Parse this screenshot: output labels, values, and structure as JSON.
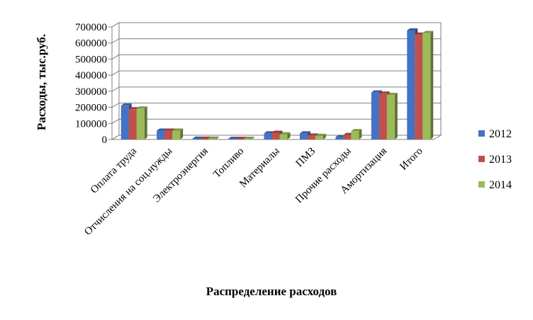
{
  "chart_data": {
    "type": "bar",
    "title": "",
    "xlabel": "Распределение расходов",
    "ylabel": "Расходы, тыс.руб.",
    "ylim": [
      0,
      700000
    ],
    "yticks": [
      "0",
      "100000",
      "200000",
      "300000",
      "400000",
      "500000",
      "600000",
      "700000"
    ],
    "grid": true,
    "legend_position": "right",
    "categories": [
      "Оплата труда",
      "Отчисления на соц.нужды",
      "Электроэнергия",
      "Топливо",
      "Материалы",
      "ПМЗ",
      "Прочие расходы",
      "Амортизация",
      "Итого"
    ],
    "series": [
      {
        "name": "2012",
        "color": "#4472C4",
        "values": [
          210000,
          55000,
          5000,
          4000,
          38000,
          38000,
          15000,
          292000,
          678000
        ]
      },
      {
        "name": "2013",
        "color": "#C0504D",
        "values": [
          188000,
          55000,
          5000,
          4000,
          42000,
          25000,
          28000,
          285000,
          652000
        ]
      },
      {
        "name": "2014",
        "color": "#9BBB59",
        "values": [
          192000,
          55000,
          5000,
          4000,
          32000,
          22000,
          52000,
          277000,
          662000
        ]
      }
    ]
  }
}
